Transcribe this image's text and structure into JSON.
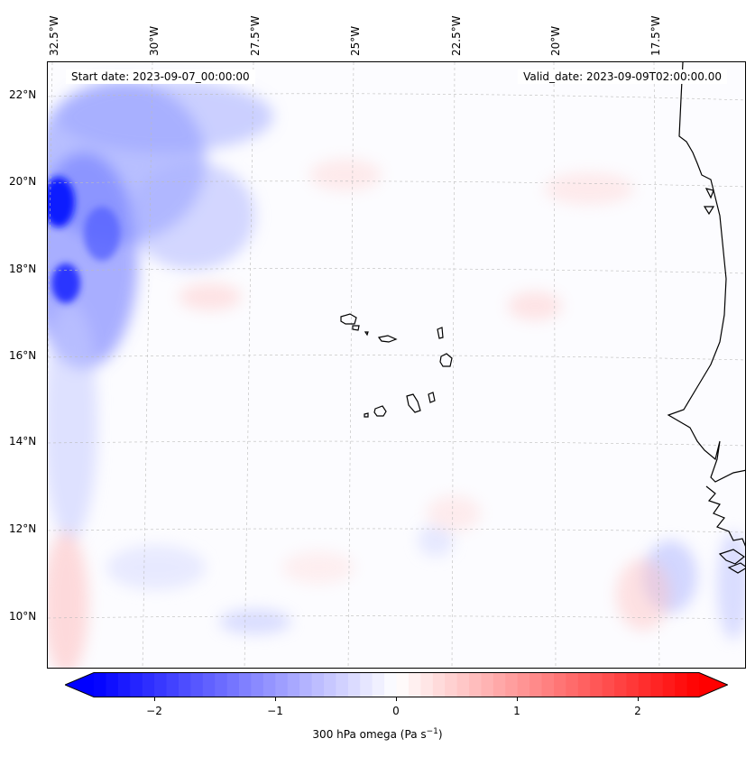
{
  "map": {
    "lon_labels": [
      "32.5°W",
      "30°W",
      "27.5°W",
      "25°W",
      "22.5°W",
      "20°W",
      "17.5°W"
    ],
    "lat_labels": [
      "22°N",
      "20°N",
      "18°N",
      "16°N",
      "14°N",
      "12°N",
      "10°N"
    ],
    "start_date": "Start date: 2023-09-07_00:00:00",
    "valid_date": "Valid_date: 2023-09-09T02:00:00.00"
  },
  "colorbar": {
    "ticks": [
      "−2",
      "−1",
      "0",
      "1",
      "2"
    ],
    "tick_values": [
      -2,
      -1,
      0,
      1,
      2
    ],
    "range": [
      -2.5,
      2.5
    ],
    "label": "300 hPa omega (Pa s",
    "label_sup": "−1",
    "label_end": ")",
    "colors": {
      "neg": "#0000ff",
      "mid": "#ffffff",
      "pos": "#ff0000"
    }
  }
}
